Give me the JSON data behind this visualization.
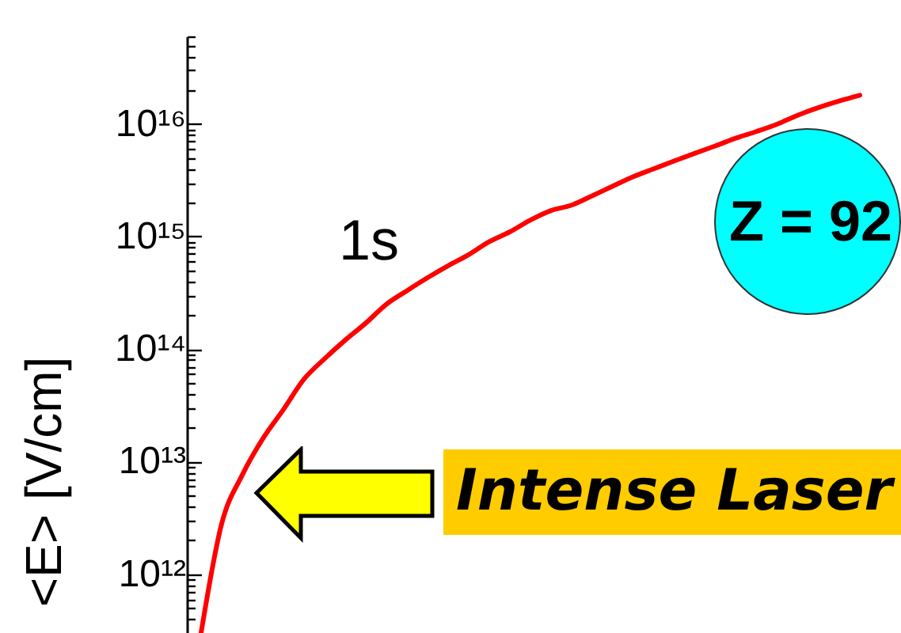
{
  "chart_data": {
    "type": "line",
    "ylabel": "<E> [V/cm]",
    "annotations": [
      "Z = 92",
      "Intense Laser"
    ],
    "categories": [
      null,
      null,
      null,
      null,
      null,
      null,
      null,
      null,
      null,
      null,
      null,
      null,
      null,
      null,
      null,
      null,
      null,
      null,
      null,
      null,
      null,
      null,
      null,
      null,
      null,
      null,
      null,
      null,
      null,
      null,
      null,
      null,
      null
    ],
    "series": [
      {
        "name": "1s",
        "color": "#ff0000",
        "values": [
          300000000000.0,
          2800000000000.0,
          7600000000000.0,
          16000000000000.0,
          29000000000000.0,
          54000000000000.0,
          82000000000000.0,
          120000000000000.0,
          170000000000000.0,
          250000000000000.0,
          330000000000000.0,
          430000000000000.0,
          550000000000000.0,
          690000000000000.0,
          900000000000000.0,
          1100000000000000.0,
          1400000000000000.0,
          1700000000000000.0,
          1900000000000000.0,
          2300000000000000.0,
          2800000000000000.0,
          3400000000000000.0,
          4000000000000000.0,
          4700000000000000.0,
          5500000000000000.0,
          6400000000000000.0,
          7500000000000000.0,
          8600000000000000.0,
          1e+16,
          1.2e+16,
          1.4e+16,
          1.6e+16,
          1.8e+16
        ]
      }
    ],
    "ylim": [
      300000000000.0,
      6e+16
    ],
    "yticks": [
      {
        "value": 400000000000.0,
        "label": null
      },
      {
        "value": 500000000000.0,
        "label": null
      },
      {
        "value": 600000000000.0,
        "label": null
      },
      {
        "value": 700000000000.0,
        "label": null
      },
      {
        "value": 800000000000.0,
        "label": null
      },
      {
        "value": 900000000000.0,
        "label": null
      },
      {
        "value": 1000000000000.0,
        "label": "10¹²"
      },
      {
        "value": 2000000000000.0,
        "label": null
      },
      {
        "value": 3000000000000.0,
        "label": null
      },
      {
        "value": 4000000000000.0,
        "label": null
      },
      {
        "value": 5000000000000.0,
        "label": null
      },
      {
        "value": 6000000000000.0,
        "label": null
      },
      {
        "value": 7000000000000.0,
        "label": null
      },
      {
        "value": 8000000000000.0,
        "label": null
      },
      {
        "value": 9000000000000.0,
        "label": null
      },
      {
        "value": 10000000000000.0,
        "label": "10¹³"
      },
      {
        "value": 20000000000000.0,
        "label": null
      },
      {
        "value": 30000000000000.0,
        "label": null
      },
      {
        "value": 40000000000000.0,
        "label": null
      },
      {
        "value": 50000000000000.0,
        "label": null
      },
      {
        "value": 60000000000000.0,
        "label": null
      },
      {
        "value": 70000000000000.0,
        "label": null
      },
      {
        "value": 80000000000000.0,
        "label": null
      },
      {
        "value": 90000000000000.0,
        "label": null
      },
      {
        "value": 100000000000000.0,
        "label": "10¹⁴"
      },
      {
        "value": 200000000000000.0,
        "label": null
      },
      {
        "value": 300000000000000.0,
        "label": null
      },
      {
        "value": 400000000000000.0,
        "label": null
      },
      {
        "value": 500000000000000.0,
        "label": null
      },
      {
        "value": 600000000000000.0,
        "label": null
      },
      {
        "value": 700000000000000.0,
        "label": null
      },
      {
        "value": 800000000000000.0,
        "label": null
      },
      {
        "value": 900000000000000.0,
        "label": null
      },
      {
        "value": 1000000000000000.0,
        "label": "10¹⁵"
      },
      {
        "value": 2000000000000000.0,
        "label": null
      },
      {
        "value": 3000000000000000.0,
        "label": null
      },
      {
        "value": 4000000000000000.0,
        "label": null
      },
      {
        "value": 5000000000000000.0,
        "label": null
      },
      {
        "value": 6000000000000000.0,
        "label": null
      },
      {
        "value": 7000000000000000.0,
        "label": null
      },
      {
        "value": 8000000000000000.0,
        "label": null
      },
      {
        "value": 9000000000000000.0,
        "label": null
      },
      {
        "value": 1e+16,
        "label": "10¹⁶"
      },
      {
        "value": 2e+16,
        "label": null
      },
      {
        "value": 3e+16,
        "label": null
      },
      {
        "value": 4e+16,
        "label": null
      },
      {
        "value": 5e+16,
        "label": null
      },
      {
        "value": 6e+16,
        "label": null
      }
    ],
    "log": true,
    "tick_labels": "y",
    "line_style": "solid"
  }
}
